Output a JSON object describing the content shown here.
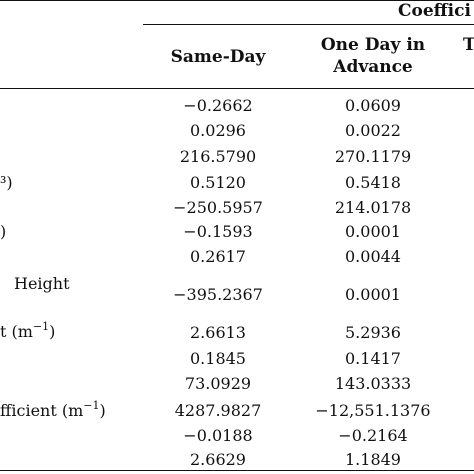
{
  "table": {
    "group_header": "Coeffici",
    "columns": [
      "Same-Day",
      "One Day in Advance",
      "T"
    ],
    "rows": [
      {
        "label": "",
        "same_day": "−0.2662",
        "one_day": "0.0609"
      },
      {
        "label": "",
        "same_day": "0.0296",
        "one_day": "0.0022"
      },
      {
        "label": "",
        "same_day": "216.5790",
        "one_day": "270.1179"
      },
      {
        "label": "³)",
        "same_day": "0.5120",
        "one_day": "0.5418"
      },
      {
        "label": "",
        "same_day": "−250.5957",
        "one_day": "214.0178"
      },
      {
        "label": ")",
        "same_day": "−0.1593",
        "one_day": "0.0001"
      },
      {
        "label": "",
        "same_day": "0.2617",
        "one_day": "0.0044"
      },
      {
        "label": "Height",
        "same_day": "−395.2367",
        "one_day": "0.0001"
      },
      {
        "label": "t (m⁻¹)",
        "same_day": "2.6613",
        "one_day": "5.2936"
      },
      {
        "label": "",
        "same_day": "0.1845",
        "one_day": "0.1417"
      },
      {
        "label": "",
        "same_day": "73.0929",
        "one_day": "143.0333"
      },
      {
        "label": "fficient (m⁻¹)",
        "same_day": "4287.9827",
        "one_day": "−12,551.1376"
      },
      {
        "label": "",
        "same_day": "−0.0188",
        "one_day": "−0.2164"
      },
      {
        "label": "",
        "same_day": "2.6629",
        "one_day": "1.1849"
      }
    ]
  }
}
